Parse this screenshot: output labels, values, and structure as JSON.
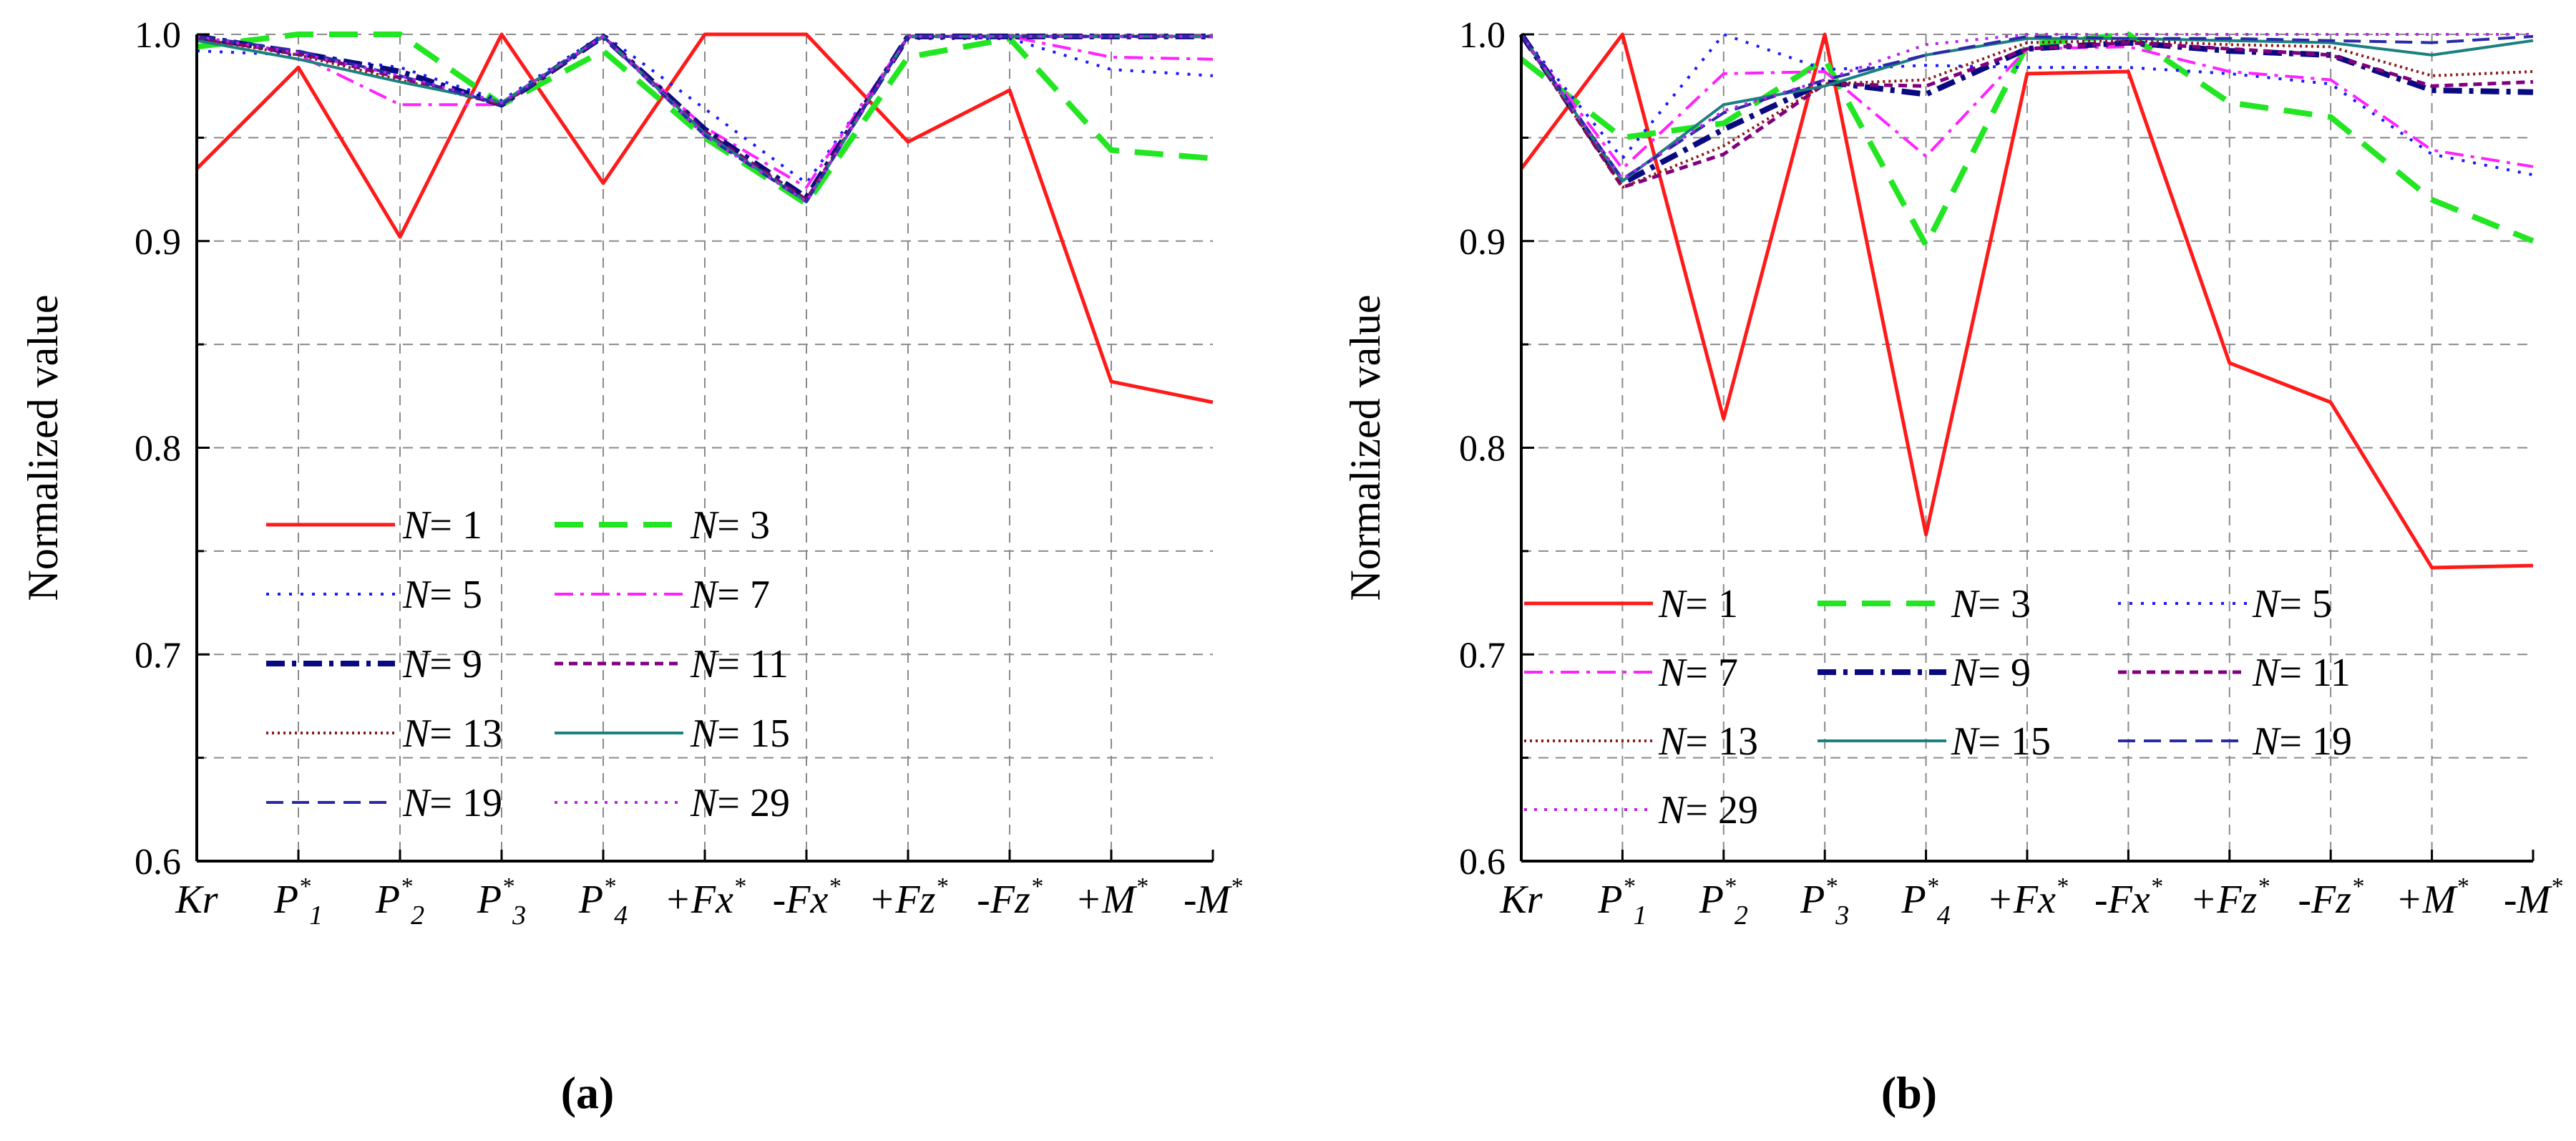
{
  "chart_data": [
    {
      "type": "line",
      "panel_label": "(a)",
      "ylabel": "Normalized value",
      "ylim": [
        0.6,
        1.0
      ],
      "yticks": [
        "0.6",
        "0.7",
        "0.8",
        "0.9",
        "1.0"
      ],
      "grid": true,
      "legend_location": "lower-left",
      "legend_columns": 2,
      "categories": [
        {
          "pre": "",
          "base": "Kr",
          "sup": "",
          "sub": ""
        },
        {
          "pre": "",
          "base": "P",
          "sup": "*",
          "sub": "1"
        },
        {
          "pre": "",
          "base": "P",
          "sup": "*",
          "sub": "2"
        },
        {
          "pre": "",
          "base": "P",
          "sup": "*",
          "sub": "3"
        },
        {
          "pre": "",
          "base": "P",
          "sup": "*",
          "sub": "4"
        },
        {
          "pre": "+",
          "base": "Fx",
          "sup": "*",
          "sub": ""
        },
        {
          "pre": "-",
          "base": "Fx",
          "sup": "*",
          "sub": ""
        },
        {
          "pre": "+",
          "base": "Fz",
          "sup": "*",
          "sub": ""
        },
        {
          "pre": "-",
          "base": "Fz",
          "sup": "*",
          "sub": ""
        },
        {
          "pre": "+",
          "base": "M",
          "sup": "*",
          "sub": ""
        },
        {
          "pre": "-",
          "base": "M",
          "sup": "*",
          "sub": ""
        }
      ],
      "series": [
        {
          "name": "N= 1",
          "n": "1",
          "color": "#ff1a1a",
          "dash": "",
          "width": 5,
          "values": [
            0.935,
            0.984,
            0.902,
            1.0,
            0.928,
            1.0,
            1.0,
            0.948,
            0.973,
            0.832,
            0.822
          ]
        },
        {
          "name": "N= 3",
          "n": "3",
          "color": "#22e622",
          "dash": "40,22",
          "width": 8,
          "values": [
            0.994,
            1.0,
            1.0,
            0.966,
            0.992,
            0.95,
            0.918,
            0.989,
            0.998,
            0.944,
            0.94
          ]
        },
        {
          "name": "N= 5",
          "n": "5",
          "color": "#1a1aff",
          "dash": "4,12",
          "width": 4,
          "values": [
            0.992,
            0.99,
            0.984,
            0.968,
            1.0,
            0.964,
            0.928,
            0.998,
            0.998,
            0.983,
            0.98
          ]
        },
        {
          "name": "N= 7",
          "n": "7",
          "color": "#ff22ff",
          "dash": "26,10,5,10",
          "width": 4,
          "values": [
            0.999,
            0.99,
            0.966,
            0.966,
            0.999,
            0.955,
            0.926,
            0.999,
            0.999,
            0.989,
            0.988
          ]
        },
        {
          "name": "N= 9",
          "n": "9",
          "color": "#0a0a80",
          "dash": "26,10,6,10",
          "width": 8,
          "values": [
            0.999,
            0.991,
            0.982,
            0.966,
            0.999,
            0.954,
            0.921,
            0.999,
            0.999,
            0.999,
            0.999
          ]
        },
        {
          "name": "N= 11",
          "n": "11",
          "color": "#800080",
          "dash": "12,8",
          "width": 5,
          "values": [
            0.998,
            0.991,
            0.979,
            0.966,
            0.999,
            0.953,
            0.92,
            0.999,
            0.999,
            0.999,
            0.999
          ]
        },
        {
          "name": "N= 13",
          "n": "13",
          "color": "#8b1a1a",
          "dash": "3,5",
          "width": 4,
          "values": [
            0.998,
            0.99,
            0.978,
            0.966,
            0.999,
            0.952,
            0.92,
            0.999,
            0.999,
            0.999,
            0.999
          ]
        },
        {
          "name": "N= 15",
          "n": "15",
          "color": "#1a8080",
          "dash": "",
          "width": 4,
          "values": [
            0.997,
            0.988,
            0.977,
            0.967,
            0.999,
            0.952,
            0.919,
            0.999,
            0.999,
            0.999,
            0.999
          ]
        },
        {
          "name": "N= 19",
          "n": "19",
          "color": "#2a2aa8",
          "dash": "24,12",
          "width": 4,
          "values": [
            0.999,
            0.992,
            0.98,
            0.966,
            0.999,
            0.951,
            0.919,
            0.999,
            0.999,
            0.999,
            0.999
          ]
        },
        {
          "name": "N= 29",
          "n": "29",
          "color": "#bb22ee",
          "dash": "4,10",
          "width": 4,
          "values": [
            0.999,
            0.991,
            0.98,
            0.967,
            0.999,
            0.951,
            0.919,
            0.999,
            0.999,
            0.999,
            0.999
          ]
        }
      ]
    },
    {
      "type": "line",
      "panel_label": "(b)",
      "ylabel": "Normalized value",
      "ylim": [
        0.6,
        1.0
      ],
      "yticks": [
        "0.6",
        "0.7",
        "0.8",
        "0.9",
        "1.0"
      ],
      "grid": true,
      "legend_location": "lower-left",
      "legend_columns": 3,
      "categories": [
        {
          "pre": "",
          "base": "Kr",
          "sup": "",
          "sub": ""
        },
        {
          "pre": "",
          "base": "P",
          "sup": "*",
          "sub": "1"
        },
        {
          "pre": "",
          "base": "P",
          "sup": "*",
          "sub": "2"
        },
        {
          "pre": "",
          "base": "P",
          "sup": "*",
          "sub": "3"
        },
        {
          "pre": "",
          "base": "P",
          "sup": "*",
          "sub": "4"
        },
        {
          "pre": "+",
          "base": "Fx",
          "sup": "*",
          "sub": ""
        },
        {
          "pre": "-",
          "base": "Fx",
          "sup": "*",
          "sub": ""
        },
        {
          "pre": "+",
          "base": "Fz",
          "sup": "*",
          "sub": ""
        },
        {
          "pre": "-",
          "base": "Fz",
          "sup": "*",
          "sub": ""
        },
        {
          "pre": "+",
          "base": "M",
          "sup": "*",
          "sub": ""
        },
        {
          "pre": "-",
          "base": "M",
          "sup": "*",
          "sub": ""
        }
      ],
      "series": [
        {
          "name": "N= 1",
          "n": "1",
          "color": "#ff1a1a",
          "dash": "",
          "width": 5,
          "values": [
            0.935,
            1.0,
            0.814,
            1.0,
            0.758,
            0.981,
            0.982,
            0.841,
            0.822,
            0.742,
            0.743
          ]
        },
        {
          "name": "N= 3",
          "n": "3",
          "color": "#22e622",
          "dash": "40,22",
          "width": 8,
          "values": [
            0.988,
            0.95,
            0.957,
            0.988,
            0.898,
            0.995,
            1.0,
            0.967,
            0.96,
            0.92,
            0.9
          ]
        },
        {
          "name": "N= 5",
          "n": "5",
          "color": "#1a1aff",
          "dash": "4,12",
          "width": 4,
          "values": [
            1.0,
            0.94,
            1.0,
            0.983,
            0.985,
            0.984,
            0.984,
            0.981,
            0.976,
            0.942,
            0.932
          ]
        },
        {
          "name": "N= 7",
          "n": "7",
          "color": "#ff22ff",
          "dash": "26,10,5,10",
          "width": 4,
          "values": [
            1.0,
            0.935,
            0.981,
            0.982,
            0.941,
            0.993,
            0.994,
            0.982,
            0.978,
            0.944,
            0.936
          ]
        },
        {
          "name": "N= 9",
          "n": "9",
          "color": "#0a0a80",
          "dash": "26,10,6,10",
          "width": 8,
          "values": [
            1.0,
            0.928,
            0.954,
            0.977,
            0.971,
            0.993,
            0.996,
            0.992,
            0.99,
            0.973,
            0.972
          ]
        },
        {
          "name": "N= 11",
          "n": "11",
          "color": "#800080",
          "dash": "12,8",
          "width": 5,
          "values": [
            1.0,
            0.926,
            0.942,
            0.976,
            0.975,
            0.993,
            0.996,
            0.993,
            0.99,
            0.975,
            0.977
          ]
        },
        {
          "name": "N= 13",
          "n": "13",
          "color": "#8b1a1a",
          "dash": "3,5",
          "width": 4,
          "values": [
            1.0,
            0.926,
            0.946,
            0.976,
            0.978,
            0.996,
            0.997,
            0.995,
            0.994,
            0.98,
            0.982
          ]
        },
        {
          "name": "N= 15",
          "n": "15",
          "color": "#1a8080",
          "dash": "",
          "width": 4,
          "values": [
            1.0,
            0.929,
            0.966,
            0.975,
            0.99,
            0.998,
            0.998,
            0.997,
            0.996,
            0.99,
            0.997
          ]
        },
        {
          "name": "N= 19",
          "n": "19",
          "color": "#2a2aa8",
          "dash": "24,12",
          "width": 4,
          "values": [
            1.0,
            0.93,
            0.962,
            0.978,
            0.99,
            0.999,
            0.998,
            0.998,
            0.997,
            0.996,
            0.999
          ]
        },
        {
          "name": "N= 29",
          "n": "29",
          "color": "#bb22ee",
          "dash": "4,10",
          "width": 4,
          "values": [
            1.0,
            0.93,
            0.963,
            0.978,
            0.995,
            1.0,
            1.0,
            1.0,
            1.0,
            1.0,
            1.0
          ]
        }
      ]
    }
  ]
}
